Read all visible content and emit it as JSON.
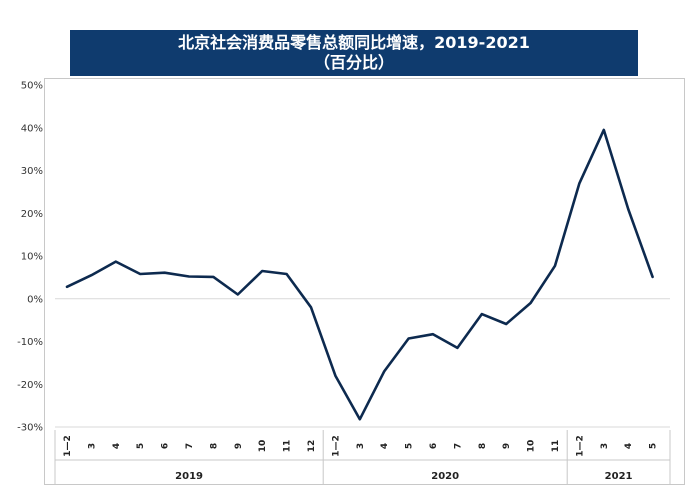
{
  "chart_data": {
    "type": "line",
    "title": "北京社会消费品零售总额同比增速，2019-2021",
    "subtitle": "（百分比）",
    "xlabel": "",
    "ylabel": "",
    "ylim": [
      -30,
      50
    ],
    "yticks": [
      "50%",
      "40%",
      "30%",
      "20%",
      "10%",
      "0%",
      "-10%",
      "-20%",
      "-30%"
    ],
    "grid": false,
    "categories": [
      "1—2",
      "3",
      "4",
      "5",
      "6",
      "7",
      "8",
      "9",
      "10",
      "11",
      "12",
      "1—2",
      "3",
      "4",
      "5",
      "6",
      "7",
      "8",
      "9",
      "10",
      "11",
      "1—2",
      "3",
      "4",
      "5"
    ],
    "groups": [
      {
        "label": "2019",
        "count": 11
      },
      {
        "label": "2020",
        "count": 10
      },
      {
        "label": "2021",
        "count": 4
      }
    ],
    "series": [
      {
        "values": [
          2.8,
          5.5,
          8.7,
          5.8,
          6.1,
          5.2,
          5.1,
          1.0,
          6.5,
          5.8,
          -2.0,
          -18.0,
          -28.2,
          -17.0,
          -9.3,
          -8.3,
          -11.5,
          -3.6,
          -5.9,
          -1.0,
          7.7,
          27.0,
          39.5,
          21.0,
          5.1
        ],
        "color": "#0d2a4f"
      }
    ]
  }
}
